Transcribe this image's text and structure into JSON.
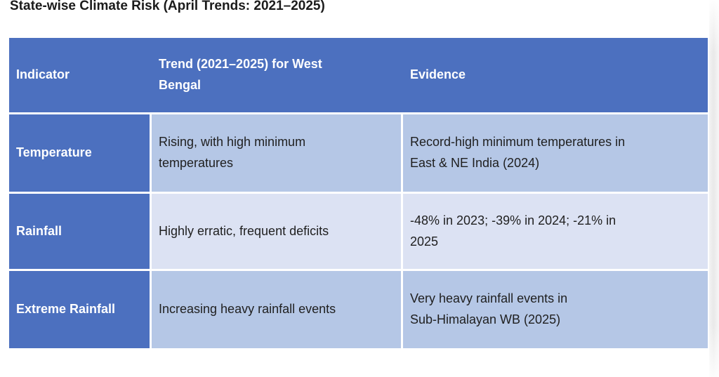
{
  "page": {
    "title": "State-wise Climate Risk (April Trends: 2021–2025)"
  },
  "table": {
    "columns": [
      {
        "label": "Indicator"
      },
      {
        "label": "Trend (2021–2025) for West\nBengal"
      },
      {
        "label": "Evidence"
      }
    ],
    "rows": [
      {
        "indicator": "Temperature",
        "trend": "Rising, with high minimum\ntemperatures",
        "evidence": "Record-high minimum temperatures in\nEast & NE India (2024)"
      },
      {
        "indicator": "Rainfall",
        "trend": "Highly erratic, frequent deficits",
        "evidence": "-48% in 2023; -39% in 2024; -21% in\n2025"
      },
      {
        "indicator": "Extreme Rainfall",
        "trend": "Increasing heavy rainfall events",
        "evidence": "Very heavy rainfall events in\nSub-Himalayan WB (2025)"
      }
    ]
  },
  "colors": {
    "header_blue": "#4C70BF",
    "band_light_blue": "#B5C7E6",
    "band_pale_blue": "#DCE2F3",
    "border_white": "#FFFFFF",
    "title_text": "#1B1B1B",
    "body_text": "#1F1F1F",
    "header_text": "#FFFFFF"
  }
}
